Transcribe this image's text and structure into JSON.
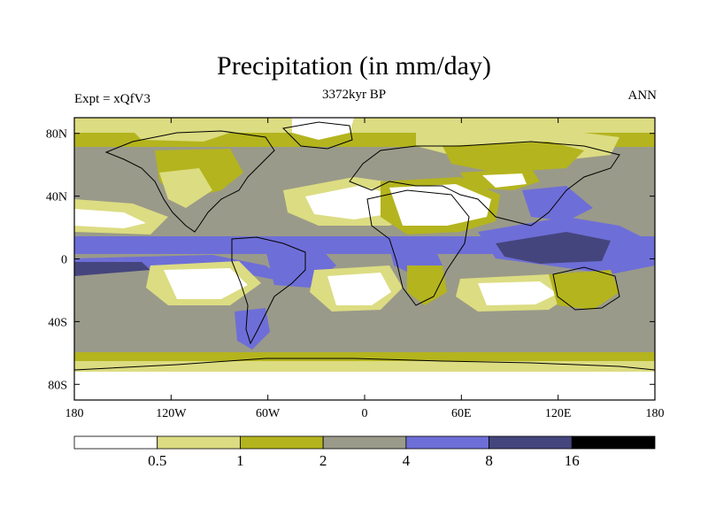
{
  "title": "Precipitation (in mm/day)",
  "subtitle": "3372kyr BP",
  "left_label": "Expt = xQfV3",
  "right_label": "ANN",
  "colors": {
    "c1": "#ffffff",
    "c2": "#dcdc82",
    "c3": "#b4b41e",
    "c4": "#9a9a8a",
    "c5": "#6e6ed8",
    "c6": "#45457e",
    "c7": "#000000"
  },
  "map": {
    "lon_ticks": [
      {
        "lon": -180,
        "label": "180"
      },
      {
        "lon": -120,
        "label": "120W"
      },
      {
        "lon": -60,
        "label": "60W"
      },
      {
        "lon": 0,
        "label": "0"
      },
      {
        "lon": 60,
        "label": "60E"
      },
      {
        "lon": 120,
        "label": "120E"
      },
      {
        "lon": 180,
        "label": "180"
      }
    ],
    "lat_ticks": [
      {
        "lat": 80,
        "label": "80N"
      },
      {
        "lat": 40,
        "label": "40N"
      },
      {
        "lat": 0,
        "label": "0"
      },
      {
        "lat": -40,
        "label": "40S"
      },
      {
        "lat": -80,
        "label": "80S"
      }
    ]
  },
  "colorbar": {
    "levels": [
      "0.5",
      "1",
      "2",
      "4",
      "8",
      "16"
    ],
    "colors": [
      "#ffffff",
      "#dcdc82",
      "#b4b41e",
      "#9a9a8a",
      "#6e6ed8",
      "#45457e",
      "#000000"
    ]
  }
}
